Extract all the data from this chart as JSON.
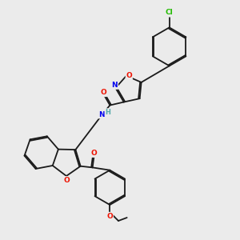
{
  "bg_color": "#ebebeb",
  "bond_color": "#1a1a1a",
  "atom_colors": {
    "O": "#ee1100",
    "N": "#0000ee",
    "Cl": "#22bb00",
    "C": "#1a1a1a",
    "H": "#55aaaa"
  }
}
